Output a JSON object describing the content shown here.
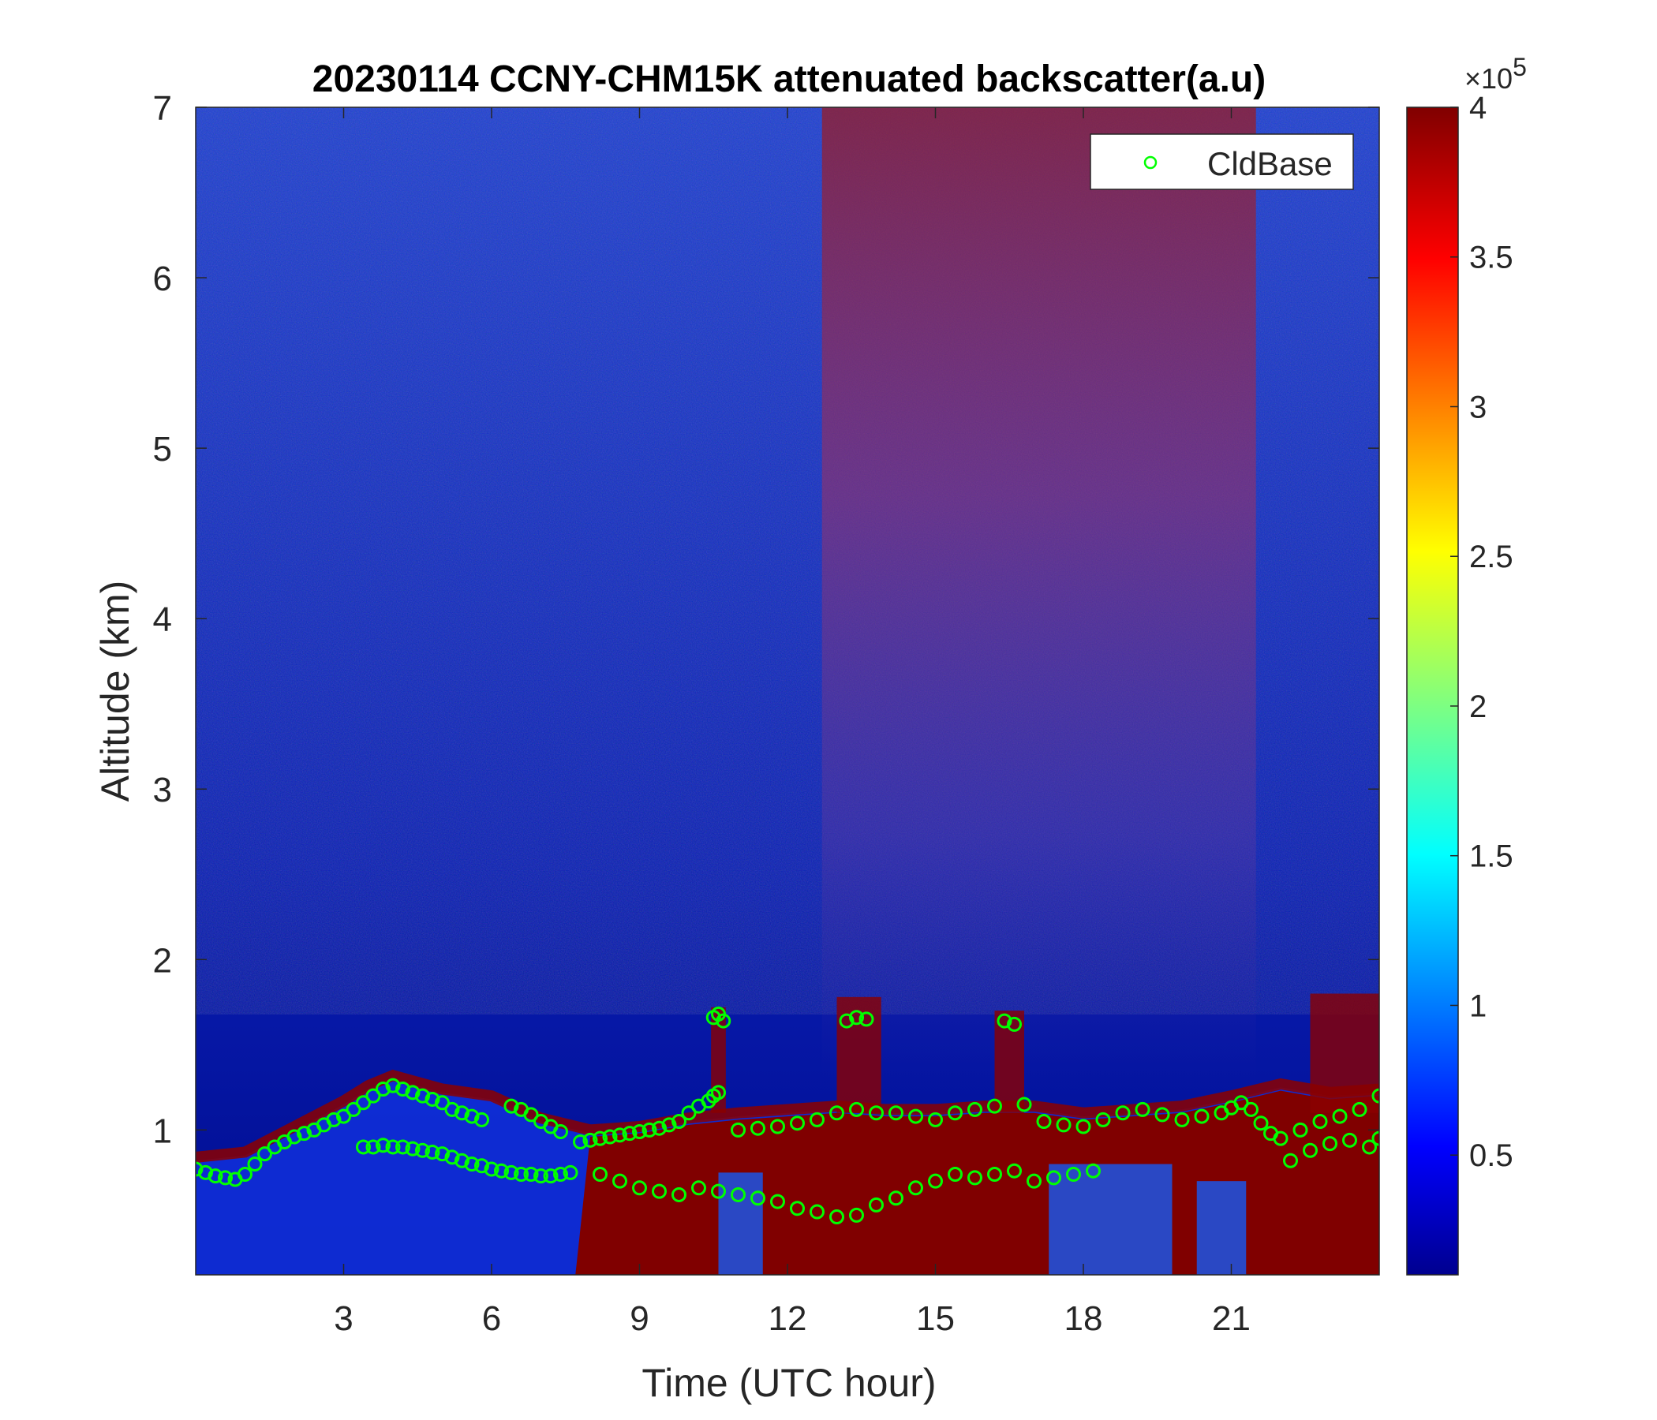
{
  "chart_data": {
    "type": "heatmap",
    "title": "20230114 CCNY-CHM15K attenuated backscatter(a.u)",
    "xlabel": "Time (UTC hour)",
    "ylabel": "Altitude (km)",
    "xlim": [
      0,
      24
    ],
    "ylim": [
      0.15,
      7
    ],
    "xticks": [
      3,
      6,
      9,
      12,
      15,
      18,
      21
    ],
    "yticks": [
      1,
      2,
      3,
      4,
      5,
      6,
      7
    ],
    "colormap": "jet",
    "colorbar": {
      "range": [
        0.1,
        4
      ],
      "ticks": [
        0.5,
        1,
        1.5,
        2,
        2.5,
        3,
        3.5,
        4
      ],
      "tick_labels": [
        "0.5",
        "1",
        "1.5",
        "2",
        "2.5",
        "3",
        "3.5",
        "4"
      ],
      "exponent_base": "×10",
      "exponent_power": "5"
    },
    "features": {
      "pbl_top_km": [
        [
          0,
          0.82
        ],
        [
          1,
          0.85
        ],
        [
          2,
          1.0
        ],
        [
          3,
          1.15
        ],
        [
          3.5,
          1.24
        ],
        [
          4,
          1.3
        ],
        [
          5,
          1.22
        ],
        [
          6,
          1.18
        ],
        [
          7,
          1.05
        ],
        [
          8,
          0.98
        ],
        [
          9,
          1.0
        ],
        [
          10,
          1.05
        ],
        [
          11,
          1.08
        ],
        [
          12,
          1.1
        ],
        [
          13,
          1.12
        ],
        [
          14,
          1.1
        ],
        [
          15,
          1.1
        ],
        [
          16,
          1.12
        ],
        [
          17,
          1.12
        ],
        [
          18,
          1.08
        ],
        [
          19,
          1.1
        ],
        [
          20,
          1.12
        ],
        [
          21,
          1.18
        ],
        [
          22,
          1.25
        ],
        [
          23,
          1.2
        ],
        [
          24,
          1.22
        ]
      ],
      "dense_layer_start_hour": 7.7,
      "elevated_signal_hours": [
        12.7,
        21.5
      ]
    },
    "series": [
      {
        "name": "CldBase",
        "marker": "circle",
        "color": "#00ff00",
        "points": [
          [
            0.0,
            0.77
          ],
          [
            0.2,
            0.75
          ],
          [
            0.4,
            0.73
          ],
          [
            0.6,
            0.72
          ],
          [
            0.8,
            0.71
          ],
          [
            1.0,
            0.74
          ],
          [
            1.2,
            0.8
          ],
          [
            1.4,
            0.86
          ],
          [
            1.6,
            0.9
          ],
          [
            1.8,
            0.93
          ],
          [
            2.0,
            0.96
          ],
          [
            2.2,
            0.98
          ],
          [
            2.4,
            1.0
          ],
          [
            2.6,
            1.03
          ],
          [
            2.8,
            1.06
          ],
          [
            3.0,
            1.08
          ],
          [
            3.2,
            1.12
          ],
          [
            3.4,
            1.16
          ],
          [
            3.6,
            1.2
          ],
          [
            3.8,
            1.24
          ],
          [
            4.0,
            1.26
          ],
          [
            4.2,
            1.24
          ],
          [
            4.4,
            1.22
          ],
          [
            4.6,
            1.2
          ],
          [
            4.8,
            1.18
          ],
          [
            5.0,
            1.16
          ],
          [
            5.2,
            1.12
          ],
          [
            5.4,
            1.1
          ],
          [
            5.6,
            1.08
          ],
          [
            5.8,
            1.06
          ],
          [
            6.4,
            1.14
          ],
          [
            6.6,
            1.12
          ],
          [
            6.8,
            1.09
          ],
          [
            7.0,
            1.05
          ],
          [
            7.2,
            1.02
          ],
          [
            7.4,
            0.99
          ],
          [
            3.4,
            0.9
          ],
          [
            3.6,
            0.9
          ],
          [
            3.8,
            0.91
          ],
          [
            4.0,
            0.9
          ],
          [
            4.2,
            0.9
          ],
          [
            4.4,
            0.89
          ],
          [
            4.6,
            0.88
          ],
          [
            4.8,
            0.87
          ],
          [
            5.0,
            0.86
          ],
          [
            5.2,
            0.84
          ],
          [
            5.4,
            0.82
          ],
          [
            5.6,
            0.8
          ],
          [
            5.8,
            0.79
          ],
          [
            6.0,
            0.77
          ],
          [
            6.2,
            0.76
          ],
          [
            6.4,
            0.75
          ],
          [
            6.6,
            0.74
          ],
          [
            6.8,
            0.74
          ],
          [
            7.0,
            0.73
          ],
          [
            7.2,
            0.73
          ],
          [
            7.4,
            0.74
          ],
          [
            7.6,
            0.75
          ],
          [
            7.8,
            0.93
          ],
          [
            8.0,
            0.94
          ],
          [
            8.2,
            0.95
          ],
          [
            8.4,
            0.96
          ],
          [
            8.6,
            0.97
          ],
          [
            8.8,
            0.98
          ],
          [
            9.0,
            0.99
          ],
          [
            9.2,
            1.0
          ],
          [
            9.4,
            1.01
          ],
          [
            9.6,
            1.03
          ],
          [
            9.8,
            1.05
          ],
          [
            10.0,
            1.1
          ],
          [
            10.2,
            1.14
          ],
          [
            10.4,
            1.17
          ],
          [
            10.5,
            1.2
          ],
          [
            10.6,
            1.22
          ],
          [
            10.5,
            1.66
          ],
          [
            10.6,
            1.68
          ],
          [
            10.7,
            1.64
          ],
          [
            11.0,
            1.0
          ],
          [
            11.4,
            1.01
          ],
          [
            11.8,
            1.02
          ],
          [
            12.2,
            1.04
          ],
          [
            12.6,
            1.06
          ],
          [
            13.0,
            1.1
          ],
          [
            13.4,
            1.12
          ],
          [
            13.2,
            1.64
          ],
          [
            13.4,
            1.66
          ],
          [
            13.6,
            1.65
          ],
          [
            13.8,
            1.1
          ],
          [
            14.2,
            1.1
          ],
          [
            14.6,
            1.08
          ],
          [
            15.0,
            1.06
          ],
          [
            15.4,
            1.1
          ],
          [
            15.8,
            1.12
          ],
          [
            16.2,
            1.14
          ],
          [
            16.4,
            1.64
          ],
          [
            16.6,
            1.62
          ],
          [
            16.8,
            1.15
          ],
          [
            17.2,
            1.05
          ],
          [
            17.6,
            1.03
          ],
          [
            18.0,
            1.02
          ],
          [
            18.4,
            1.06
          ],
          [
            18.8,
            1.1
          ],
          [
            19.2,
            1.12
          ],
          [
            19.6,
            1.09
          ],
          [
            20.0,
            1.06
          ],
          [
            20.4,
            1.08
          ],
          [
            20.8,
            1.1
          ],
          [
            21.0,
            1.13
          ],
          [
            21.2,
            1.16
          ],
          [
            21.4,
            1.12
          ],
          [
            21.6,
            1.04
          ],
          [
            21.8,
            0.98
          ],
          [
            22.0,
            0.95
          ],
          [
            22.4,
            1.0
          ],
          [
            22.8,
            1.05
          ],
          [
            23.2,
            1.08
          ],
          [
            23.6,
            1.12
          ],
          [
            24.0,
            1.2
          ],
          [
            8.2,
            0.74
          ],
          [
            8.6,
            0.7
          ],
          [
            9.0,
            0.66
          ],
          [
            9.4,
            0.64
          ],
          [
            9.8,
            0.62
          ],
          [
            10.2,
            0.66
          ],
          [
            10.6,
            0.64
          ],
          [
            11.0,
            0.62
          ],
          [
            11.4,
            0.6
          ],
          [
            11.8,
            0.58
          ],
          [
            12.2,
            0.54
          ],
          [
            12.6,
            0.52
          ],
          [
            13.0,
            0.49
          ],
          [
            13.4,
            0.5
          ],
          [
            13.8,
            0.56
          ],
          [
            14.2,
            0.6
          ],
          [
            14.6,
            0.66
          ],
          [
            15.0,
            0.7
          ],
          [
            15.4,
            0.74
          ],
          [
            15.8,
            0.72
          ],
          [
            16.2,
            0.74
          ],
          [
            16.6,
            0.76
          ],
          [
            17.0,
            0.7
          ],
          [
            17.4,
            0.72
          ],
          [
            17.8,
            0.74
          ],
          [
            18.2,
            0.76
          ],
          [
            22.2,
            0.82
          ],
          [
            22.6,
            0.88
          ],
          [
            23.0,
            0.92
          ],
          [
            23.4,
            0.94
          ],
          [
            23.8,
            0.9
          ],
          [
            24.0,
            0.95
          ]
        ]
      }
    ],
    "legend": {
      "position": "top-right",
      "entries": [
        "CldBase"
      ]
    }
  }
}
